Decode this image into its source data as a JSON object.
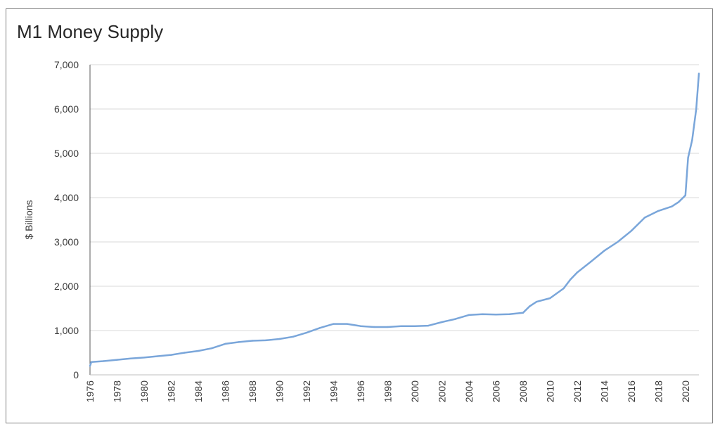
{
  "chart_data": {
    "type": "line",
    "title": "M1 Money Supply",
    "xlabel": "",
    "ylabel": "$ Billions",
    "ylim": [
      0,
      7000
    ],
    "xlim": [
      1976,
      2021
    ],
    "yticks": [
      0,
      1000,
      2000,
      3000,
      4000,
      5000,
      6000,
      7000
    ],
    "ytick_labels": [
      "0",
      "1,000",
      "2,000",
      "3,000",
      "4,000",
      "5,000",
      "6,000",
      "7,000"
    ],
    "xticks": [
      1976,
      1978,
      1980,
      1982,
      1984,
      1986,
      1988,
      1990,
      1992,
      1994,
      1996,
      1998,
      2000,
      2002,
      2004,
      2006,
      2008,
      2010,
      2012,
      2014,
      2016,
      2018,
      2020
    ],
    "xtick_labels": [
      "1976",
      "1978",
      "1980",
      "1982",
      "1984",
      "1986",
      "1988",
      "1990",
      "1992",
      "1994",
      "1996",
      "1998",
      "2000",
      "2002",
      "2004",
      "2006",
      "2008",
      "2010",
      "2012",
      "2014",
      "2016",
      "2018",
      "2020"
    ],
    "grid": true,
    "legend": "none",
    "line_color": "#7aa6da",
    "series": [
      {
        "x": [
          1976,
          1976.1,
          1977,
          1978,
          1979,
          1980,
          1981,
          1982,
          1983,
          1984,
          1985,
          1986,
          1987,
          1988,
          1989,
          1990,
          1991,
          1992,
          1993,
          1994,
          1995,
          1996,
          1997,
          1998,
          1999,
          2000,
          2001,
          2002,
          2003,
          2004,
          2005,
          2006,
          2007,
          2008,
          2008.5,
          2009,
          2010,
          2011,
          2011.5,
          2012,
          2013,
          2014,
          2015,
          2016,
          2017,
          2018,
          2019,
          2019.5,
          2020,
          2020.2,
          2020.5,
          2020.8,
          2021
        ],
        "y": [
          200,
          290,
          310,
          340,
          370,
          390,
          420,
          450,
          500,
          540,
          600,
          700,
          740,
          770,
          780,
          810,
          860,
          950,
          1060,
          1150,
          1150,
          1100,
          1080,
          1080,
          1100,
          1100,
          1110,
          1190,
          1260,
          1350,
          1370,
          1360,
          1370,
          1400,
          1550,
          1650,
          1730,
          1950,
          2150,
          2310,
          2550,
          2800,
          3000,
          3250,
          3550,
          3700,
          3800,
          3900,
          4050,
          4900,
          5300,
          6000,
          6800
        ]
      }
    ]
  }
}
